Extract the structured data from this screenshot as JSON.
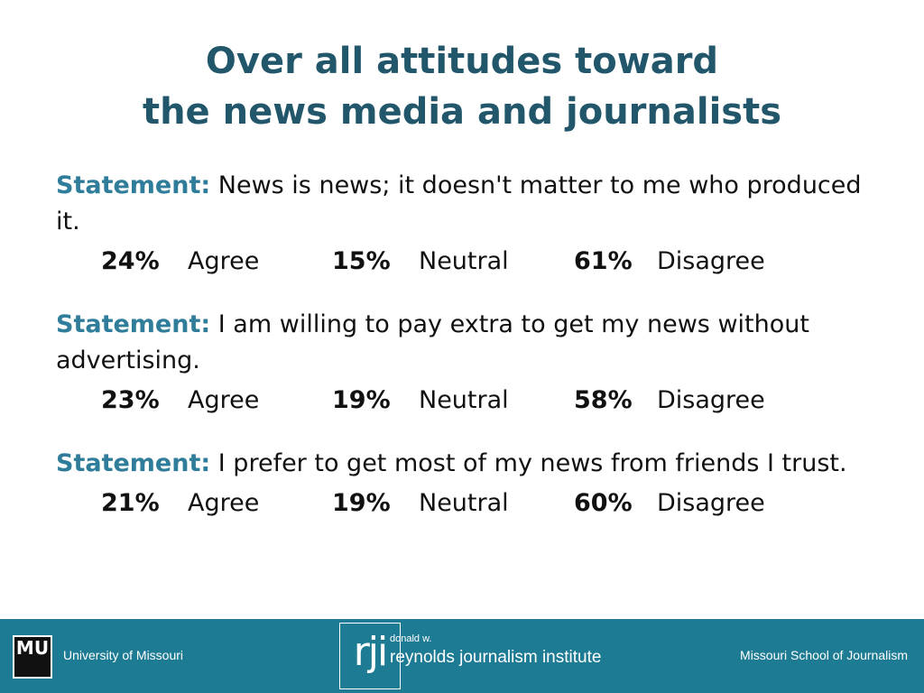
{
  "title": {
    "line1": "Over all attitudes toward",
    "line2": "the news media and journalists"
  },
  "statements": [
    {
      "label": "Statement:",
      "text": "News is news; it doesn't matter to me who produced it.",
      "agree_pct": "24%",
      "agree_label": "Agree",
      "neutral_pct": "15%",
      "neutral_label": "Neutral",
      "disagree_pct": "61%",
      "disagree_label": "Disagree"
    },
    {
      "label": "Statement:",
      "text": "I am willing to pay extra to get my news without advertising.",
      "agree_pct": "23%",
      "agree_label": "Agree",
      "neutral_pct": "19%",
      "neutral_label": "Neutral",
      "disagree_pct": "58%",
      "disagree_label": "Disagree"
    },
    {
      "label": "Statement:",
      "text": "I prefer to get most of my news from friends I trust.",
      "agree_pct": "21%",
      "agree_label": "Agree",
      "neutral_pct": "19%",
      "neutral_label": "Neutral",
      "disagree_pct": "60%",
      "disagree_label": "Disagree"
    }
  ],
  "footer": {
    "mu_logo_text": "MU",
    "left_text": "University of Missouri",
    "rji_logo_text": "rji",
    "rji_small": "donald w.",
    "rji_name": "reynolds journalism institute",
    "right_text": "Missouri School of Journalism",
    "bar_color": "#1e7b94"
  },
  "colors": {
    "title": "#22566a",
    "statement_label": "#2f7d9a"
  }
}
